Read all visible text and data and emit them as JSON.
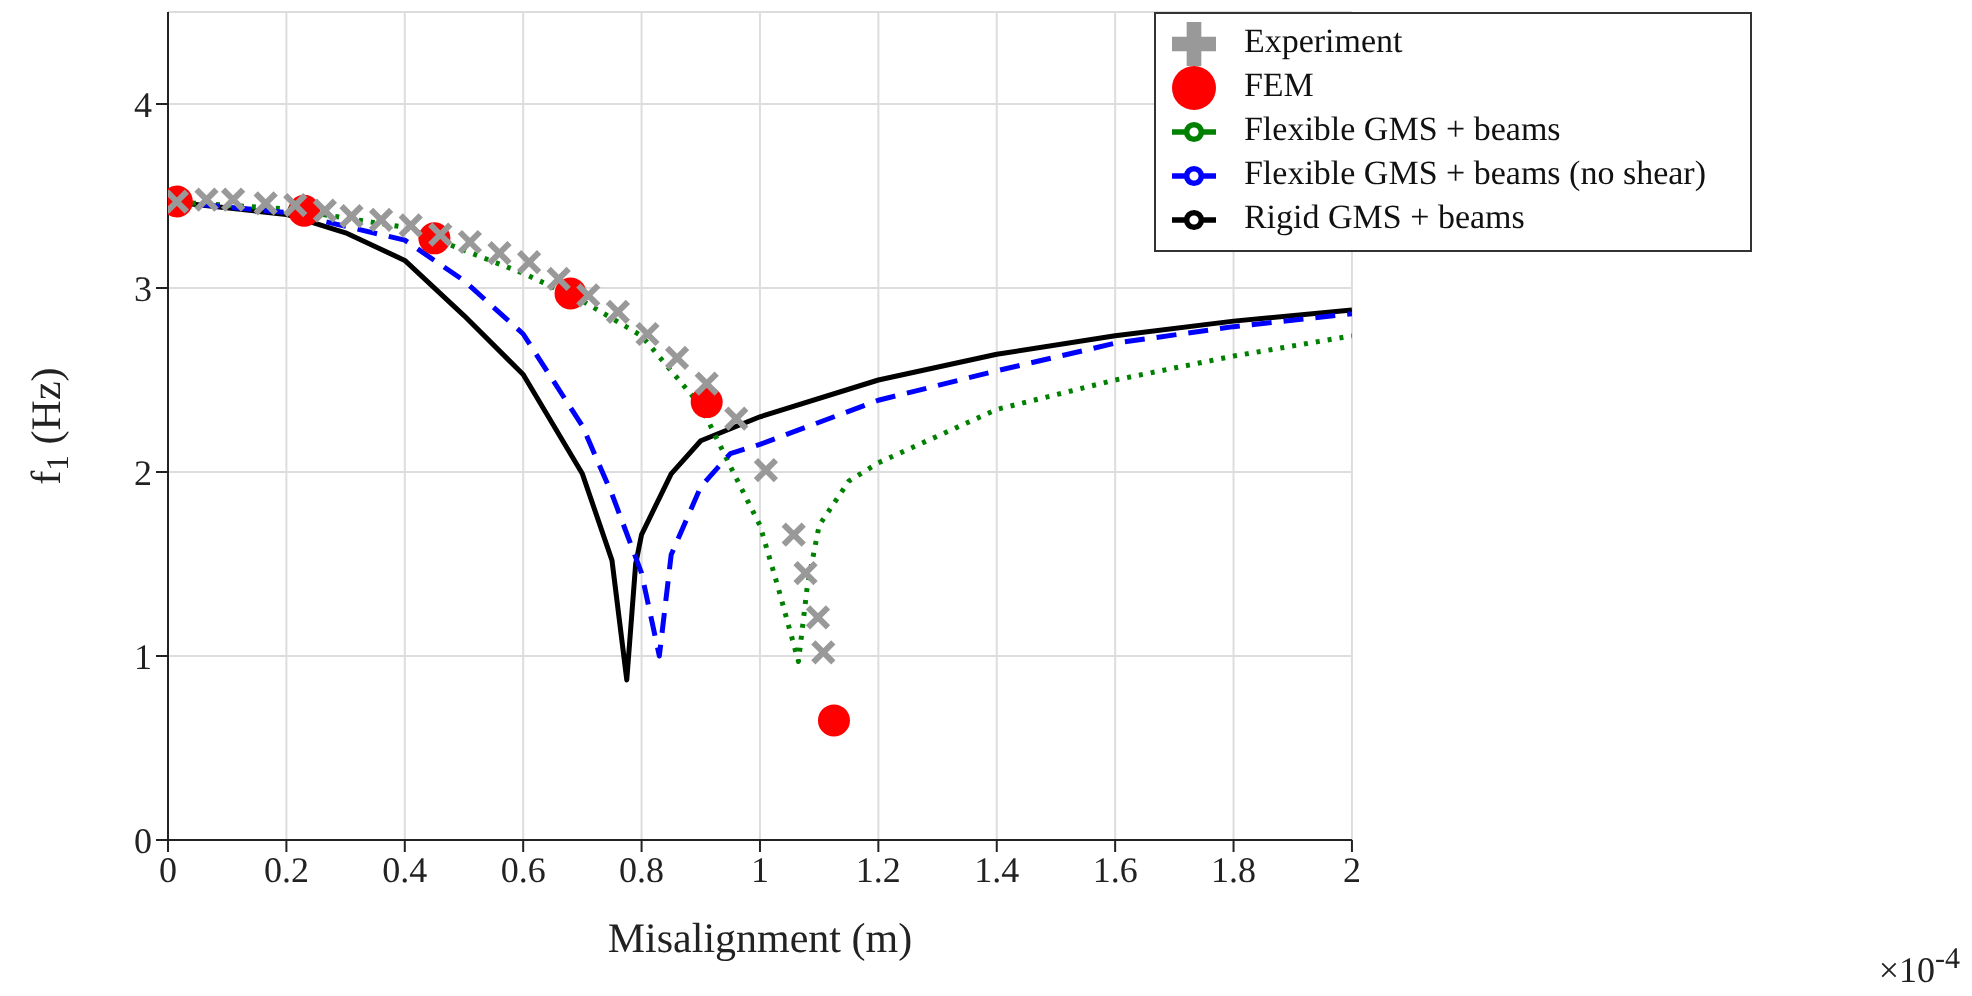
{
  "chart_data": {
    "type": "line",
    "xlabel": "Misalignment (m)",
    "ylabel": "f$_{1}$ (Hz)",
    "xlim": [
      0,
      2
    ],
    "xticks": [
      0,
      0.2,
      0.4,
      0.6,
      0.8,
      1,
      1.2,
      1.4,
      1.6,
      1.8,
      2
    ],
    "ylim": [
      0,
      4.5
    ],
    "yticks": [
      0,
      1,
      2,
      3,
      4
    ],
    "grid": true,
    "legend": "top right",
    "annotations": [
      "×10$^{-4}$"
    ],
    "series": [
      {
        "name": "Rigid GMS + beams",
        "line_style": "solid",
        "color": "#000000",
        "x": [
          0,
          0.2,
          0.3,
          0.4,
          0.5,
          0.6,
          0.7,
          0.75,
          0.775,
          0.79,
          0.8,
          0.85,
          0.9,
          1,
          1.2,
          1.4,
          1.6,
          1.8,
          2
        ],
        "values": [
          3.47,
          3.4,
          3.3,
          3.15,
          2.85,
          2.53,
          1.99,
          1.52,
          0.87,
          1.5,
          1.66,
          1.99,
          2.17,
          2.3,
          2.5,
          2.64,
          2.74,
          2.82,
          2.88
        ]
      },
      {
        "name": "Flexible GMS + beams",
        "line_style": "dotted",
        "color": "#008000",
        "x": [
          0,
          0.2,
          0.4,
          0.6,
          0.7,
          0.8,
          0.9,
          0.95,
          1,
          1.03,
          1.065,
          1.08,
          1.1,
          1.15,
          1.2,
          1.4,
          1.6,
          1.8,
          2
        ],
        "values": [
          3.47,
          3.43,
          3.33,
          3.08,
          2.93,
          2.74,
          2.36,
          2.03,
          1.71,
          1.38,
          0.97,
          1.38,
          1.71,
          1.95,
          2.05,
          2.34,
          2.5,
          2.63,
          2.74
        ]
      },
      {
        "name": "Flexible GMS + beams (no shear)",
        "line_style": "dashed",
        "color": "#0000ff",
        "x": [
          0,
          0.2,
          0.4,
          0.5,
          0.6,
          0.7,
          0.75,
          0.8,
          0.83,
          0.85,
          0.9,
          0.95,
          1,
          1.2,
          1.4,
          1.6,
          1.8,
          2
        ],
        "values": [
          3.47,
          3.41,
          3.26,
          3.04,
          2.75,
          2.25,
          1.88,
          1.45,
          1,
          1.55,
          1.92,
          2.1,
          2.15,
          2.39,
          2.55,
          2.7,
          2.79,
          2.86
        ]
      },
      {
        "name": "FEM",
        "type": "scatter",
        "marker": "circle",
        "color": "#ff0000",
        "x": [
          0.015,
          0.23,
          0.45,
          0.68,
          0.91,
          1.125
        ],
        "values": [
          3.47,
          3.42,
          3.27,
          2.97,
          2.38,
          0.65
        ]
      },
      {
        "name": "Experiment",
        "type": "scatter",
        "marker": "cross",
        "color": "#999999",
        "x": [
          0.015,
          0.065,
          0.11,
          0.165,
          0.215,
          0.265,
          0.31,
          0.36,
          0.41,
          0.46,
          0.51,
          0.56,
          0.61,
          0.66,
          0.71,
          0.76,
          0.81,
          0.86,
          0.91,
          0.96,
          1.01,
          1.057,
          1.077,
          1.098,
          1.107
        ],
        "values": [
          3.47,
          3.48,
          3.48,
          3.46,
          3.45,
          3.42,
          3.39,
          3.37,
          3.34,
          3.29,
          3.25,
          3.19,
          3.14,
          3.05,
          2.96,
          2.87,
          2.75,
          2.62,
          2.48,
          2.29,
          2.01,
          1.66,
          1.45,
          1.21,
          1.02
        ]
      }
    ]
  }
}
